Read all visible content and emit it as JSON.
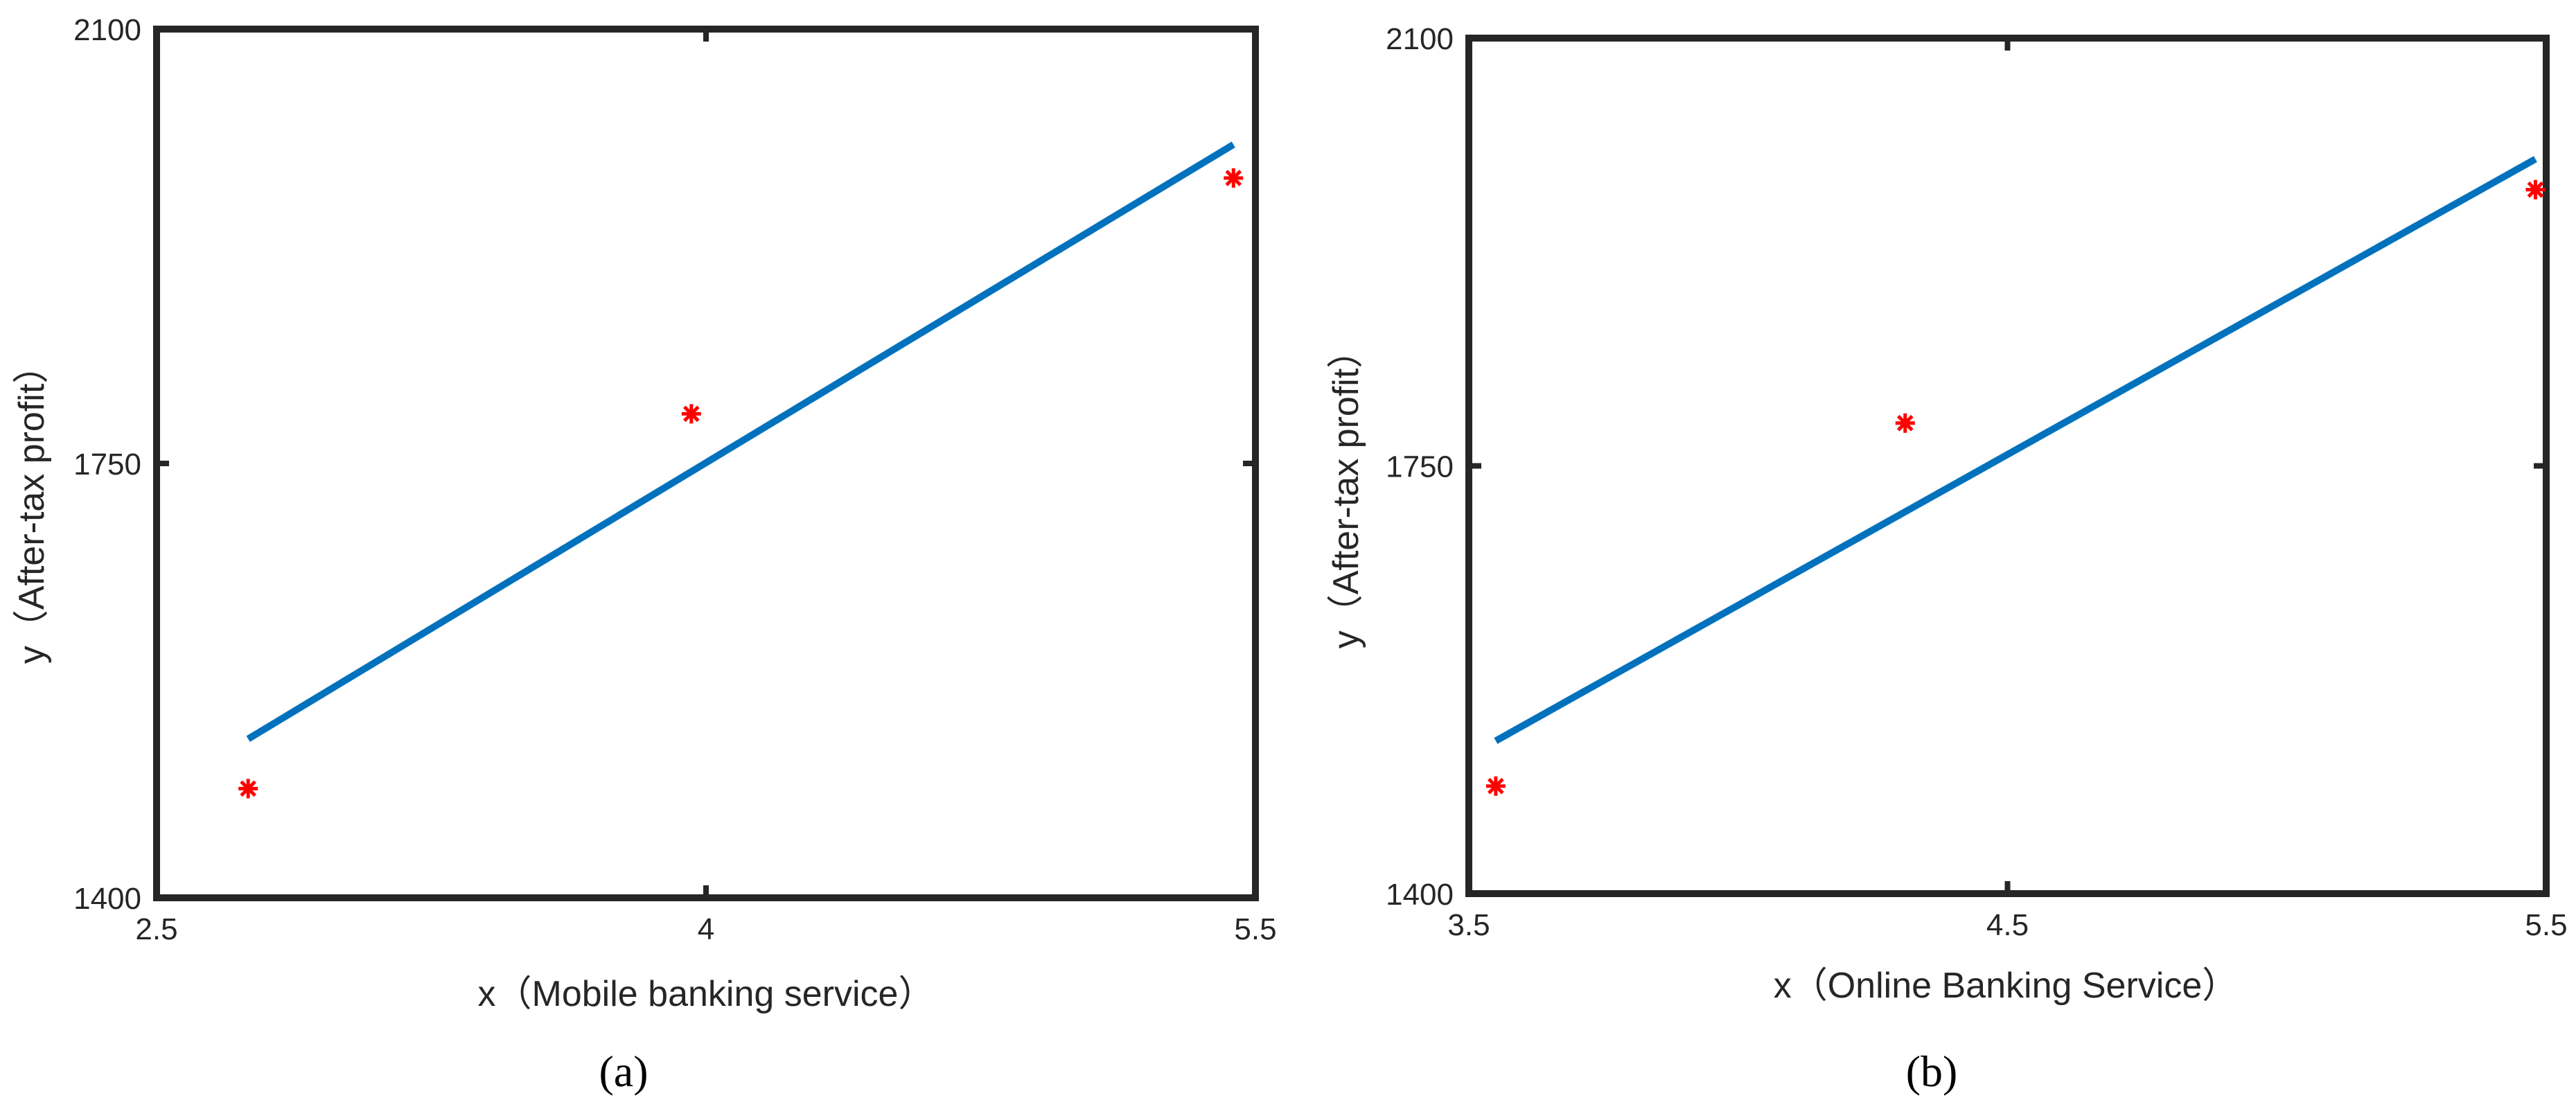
{
  "chart_data": [
    {
      "type": "scatter",
      "caption": "(a)",
      "xlabel": "x（Mobile banking service）",
      "ylabel": "y（After-tax profit）",
      "xlim": [
        2.5,
        5.5
      ],
      "ylim": [
        1400,
        2100
      ],
      "xticks": [
        "2.5",
        "4",
        "5.5"
      ],
      "yticks": [
        "1400",
        "1750",
        "2100"
      ],
      "grid": false,
      "series": [
        {
          "kind": "points",
          "marker": "asterisk",
          "color": "#ff0000",
          "x": [
            2.75,
            3.96,
            5.44
          ],
          "y": [
            1488,
            1790,
            1980
          ]
        },
        {
          "kind": "fit-line",
          "color": "#0072bd",
          "x": [
            2.75,
            5.44
          ],
          "y": [
            1528,
            2007
          ]
        }
      ]
    },
    {
      "type": "scatter",
      "caption": "(b)",
      "xlabel": "x（Online Banking Service）",
      "ylabel": "y（After-tax profit）",
      "xlim": [
        3.5,
        5.5
      ],
      "ylim": [
        1400,
        2100
      ],
      "xticks": [
        "3.5",
        "4.5",
        "5.5"
      ],
      "yticks": [
        "1400",
        "1750",
        "2100"
      ],
      "grid": false,
      "series": [
        {
          "kind": "points",
          "marker": "asterisk",
          "color": "#ff0000",
          "x": [
            3.55,
            4.31,
            5.48
          ],
          "y": [
            1488,
            1785,
            1976
          ]
        },
        {
          "kind": "fit-line",
          "color": "#0072bd",
          "x": [
            3.55,
            5.48
          ],
          "y": [
            1525,
            2001
          ]
        }
      ]
    }
  ]
}
